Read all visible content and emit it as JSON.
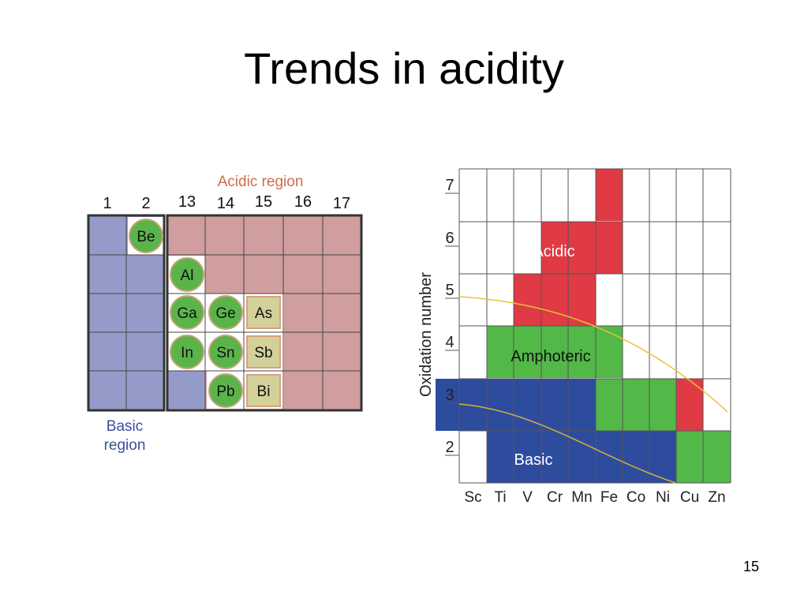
{
  "slide": {
    "title": "Trends in acidity",
    "page_number": "15"
  },
  "colors": {
    "basic_region": "#959bc8",
    "acidic_region": "#d09e9e",
    "element_circle": "#5ab44a",
    "metalloid_box": "#d3d09a",
    "acidic_label": "#d26a4a",
    "basic_label": "#3c4fa0",
    "acidic_cell": "#e03a44",
    "amphoteric_cell": "#52b848",
    "basic_cell": "#2e4c9e",
    "trend_line": "#e8c23a"
  },
  "periodic": {
    "acidic_region_label": "Acidic region",
    "basic_region_label_line1": "Basic",
    "basic_region_label_line2": "region",
    "group_headers": [
      "1",
      "2",
      "13",
      "14",
      "15",
      "16",
      "17"
    ],
    "elements": [
      {
        "symbol": "Be",
        "style": "circle"
      },
      {
        "symbol": "Al",
        "style": "circle"
      },
      {
        "symbol": "Ga",
        "style": "circle"
      },
      {
        "symbol": "Ge",
        "style": "circle"
      },
      {
        "symbol": "As",
        "style": "box"
      },
      {
        "symbol": "In",
        "style": "circle"
      },
      {
        "symbol": "Sn",
        "style": "circle"
      },
      {
        "symbol": "Sb",
        "style": "box"
      },
      {
        "symbol": "Pb",
        "style": "circle"
      },
      {
        "symbol": "Bi",
        "style": "box"
      }
    ]
  },
  "oxidation_chart": {
    "ylabel": "Oxidation number",
    "y_ticks": [
      "7",
      "6",
      "5",
      "4",
      "3",
      "2"
    ],
    "x_labels": [
      "Sc",
      "Ti",
      "V",
      "Cr",
      "Mn",
      "Fe",
      "Co",
      "Ni",
      "Cu",
      "Zn"
    ],
    "region_labels": {
      "acidic": "Acidic",
      "amphoteric": "Amphoteric",
      "basic": "Basic"
    },
    "cells_by_oxidation": {
      "7": [
        "",
        "",
        "",
        "",
        "",
        "acidic",
        "",
        "",
        "",
        ""
      ],
      "6": [
        "",
        "",
        "",
        "acidic",
        "acidic",
        "acidic",
        "",
        "",
        "",
        ""
      ],
      "5": [
        "",
        "",
        "acidic",
        "acidic",
        "acidic",
        "",
        "",
        "",
        "",
        ""
      ],
      "4": [
        "",
        "amphoteric",
        "amphoteric",
        "amphoteric",
        "amphoteric",
        "amphoteric",
        "",
        "",
        "",
        ""
      ],
      "3": [
        "basic",
        "basic",
        "basic",
        "basic",
        "basic",
        "amphoteric",
        "amphoteric",
        "amphoteric",
        "acidic",
        ""
      ],
      "2": [
        "",
        "basic",
        "basic",
        "basic",
        "basic",
        "basic",
        "basic",
        "basic",
        "amphoteric",
        "amphoteric"
      ]
    }
  }
}
